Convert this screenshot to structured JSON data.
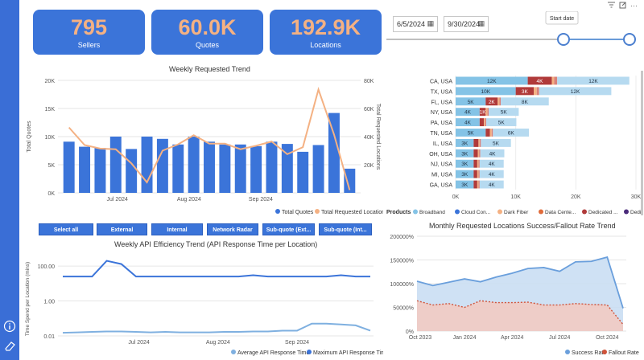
{
  "kpis": [
    {
      "value": "795",
      "label": "Sellers"
    },
    {
      "value": "60.0K",
      "label": "Quotes"
    },
    {
      "value": "192.9K",
      "label": "Locations"
    }
  ],
  "date_filter": {
    "start": "6/5/2024",
    "end": "9/30/2024",
    "tooltip": "Start date"
  },
  "slicer_buttons": [
    "Select all",
    "External",
    "Internal",
    "Network Radar",
    "Sub-quote (Ext...",
    "Sub-quote (Int..."
  ],
  "colors": {
    "accent": "#3b74d9",
    "orange": "#f4b183",
    "light_blue": "#8fc8e8",
    "dark_red": "#b03a3a"
  },
  "chart_data": [
    {
      "type": "bar",
      "title": "Weekly Requested Trend",
      "xlabel": "",
      "ylabel": "Total Quotes",
      "y2label": "Total Requested Locations",
      "x_ticks": [
        "Jul 2024",
        "Aug 2024",
        "Sep 2024"
      ],
      "y_ticks": [
        "0K",
        "5K",
        "10K",
        "15K",
        "20K"
      ],
      "y2_ticks": [
        "20K",
        "40K",
        "60K",
        "80K"
      ],
      "ylim": [
        0,
        20000
      ],
      "y2lim": [
        0,
        80000
      ],
      "series": [
        {
          "name": "Total Quotes",
          "kind": "bar",
          "values": [
            9100,
            8200,
            8000,
            10000,
            7800,
            10000,
            9600,
            8600,
            10000,
            9100,
            8600,
            8600,
            8300,
            9100,
            8700,
            7300,
            8500,
            14200,
            4300
          ]
        },
        {
          "name": "Total Requested Locations",
          "kind": "line",
          "values": [
            46500,
            34000,
            31500,
            31000,
            21000,
            7500,
            30000,
            34500,
            41000,
            35000,
            35000,
            31000,
            33500,
            36500,
            27500,
            32500,
            73500,
            41500,
            2000
          ]
        }
      ]
    },
    {
      "type": "stacked-bar",
      "title": "",
      "legend_title": "Products",
      "legend": [
        "Broadband",
        "Cloud Con...",
        "Dark Fiber",
        "Data Cente...",
        "Dedicated ...",
        "Dedicated ..."
      ],
      "x_ticks": [
        "0K",
        "10K",
        "20K",
        "30K"
      ],
      "xlim": [
        0,
        30000
      ],
      "categories": [
        "CA, USA",
        "TX, USA",
        "FL, USA",
        "NY, USA",
        "PA, USA",
        "TN, USA",
        "IL, USA",
        "OH, USA",
        "NJ, USA",
        "MI, USA",
        "GA, USA"
      ],
      "series": [
        {
          "name": "Broadband",
          "values": [
            12000,
            10000,
            5000,
            4000,
            4000,
            5000,
            3000,
            3000,
            3000,
            3000,
            3000
          ],
          "labels": [
            "12K",
            "10K",
            "5K",
            "4K",
            "4K",
            "5K",
            "3K",
            "3K",
            "3K",
            "3K",
            "3K"
          ]
        },
        {
          "name": "Dedicated Red",
          "values": [
            4000,
            3000,
            2000,
            1000,
            700,
            700,
            800,
            700,
            600,
            600,
            600
          ],
          "labels": [
            "4K",
            "3K",
            "2K",
            "1K",
            "",
            "",
            "",
            "",
            "",
            "",
            ""
          ]
        },
        {
          "name": "Dark Fiber",
          "values": [
            400,
            500,
            300,
            300,
            200,
            300,
            200,
            200,
            200,
            200,
            200
          ],
          "labels": [
            "",
            "",
            "",
            "",
            "",
            "",
            "",
            "",
            "",
            "",
            ""
          ]
        },
        {
          "name": "Data Center",
          "values": [
            500,
            400,
            200,
            200,
            200,
            200,
            200,
            200,
            200,
            200,
            200
          ],
          "labels": [
            "",
            "",
            "",
            "",
            "",
            "",
            "",
            "",
            "",
            "",
            ""
          ]
        },
        {
          "name": "Cloud",
          "values": [
            12000,
            12000,
            8000,
            5000,
            5000,
            6000,
            5000,
            4000,
            4000,
            4000,
            4000
          ],
          "labels": [
            "12K",
            "12K",
            "8K",
            "5K",
            "5K",
            "6K",
            "5K",
            "4K",
            "4K",
            "4K",
            "4K"
          ]
        }
      ]
    },
    {
      "type": "line",
      "title": "Weekly API Efficiency Trend (API Response Time per Location)",
      "ylabel": "Time Spend per Location (mins)",
      "y_ticks": [
        "100.00",
        "1.00",
        "0.01"
      ],
      "x_ticks": [
        "Jul 2024",
        "Aug 2024",
        "Sep 2024"
      ],
      "yscale": "log",
      "series": [
        {
          "name": "Average API Response Time",
          "values": [
            0.015,
            0.016,
            0.017,
            0.018,
            0.018,
            0.017,
            0.016,
            0.017,
            0.016,
            0.016,
            0.016,
            0.017,
            0.017,
            0.018,
            0.018,
            0.02,
            0.02,
            0.05,
            0.05,
            0.045,
            0.04,
            0.02
          ]
        },
        {
          "name": "Maximum API Response Time",
          "values": [
            25,
            25,
            25,
            200,
            130,
            25,
            25,
            25,
            25,
            25,
            25,
            25,
            25,
            30,
            25,
            25,
            25,
            25,
            25,
            30,
            25,
            25
          ]
        }
      ]
    },
    {
      "type": "area",
      "title": "Monthly Requested Locations Success/Fallout Rate Trend",
      "y_ticks": [
        "0%",
        "50000%",
        "100000%",
        "150000%",
        "200000%"
      ],
      "ylim": [
        0,
        200000
      ],
      "x_ticks": [
        "Oct 2023",
        "Jan 2024",
        "Apr 2024",
        "Jul 2024",
        "Oct 2024"
      ],
      "series": [
        {
          "name": "Success Rate",
          "values": [
            105000,
            96000,
            103000,
            110000,
            104000,
            114000,
            122000,
            132000,
            134000,
            126000,
            146000,
            147000,
            156000,
            48000
          ]
        },
        {
          "name": "Fallout Rate",
          "values": [
            64000,
            55000,
            58000,
            50000,
            64000,
            60000,
            60000,
            61000,
            55000,
            55000,
            58000,
            56000,
            55000,
            14000
          ]
        }
      ]
    }
  ]
}
